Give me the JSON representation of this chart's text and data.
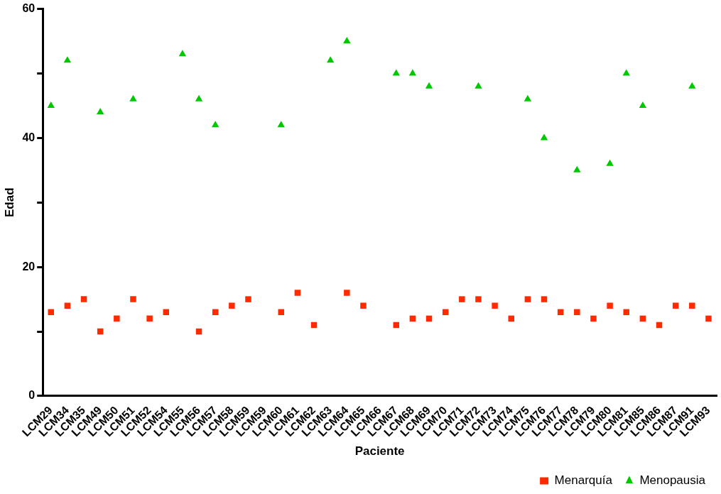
{
  "chart_data": {
    "type": "scatter",
    "xlabel": "Paciente",
    "ylabel": "Edad",
    "categories": [
      "LCM29",
      "LCM34",
      "LCM35",
      "LCM49",
      "LCM50",
      "LCM51",
      "LCM52",
      "LCM54",
      "LCM55",
      "LCM56",
      "LCM57",
      "LCM58",
      "LCM59",
      "LCM59",
      "LCM60",
      "LCM61",
      "LCM62",
      "LCM63",
      "LCM64",
      "LCM65",
      "LCM66",
      "LCM67",
      "LCM68",
      "LCM69",
      "LCM70",
      "LCM71",
      "LCM72",
      "LCM73",
      "LCM74",
      "LCM75",
      "LCM76",
      "LCM77",
      "LCM78",
      "LCM79",
      "LCM80",
      "LCM81",
      "LCM85",
      "LCM86",
      "LCM87",
      "LCM91",
      "LCM93"
    ],
    "series": [
      {
        "name": "Menarquía",
        "color": "#ff2a00",
        "marker": "square",
        "values": [
          13,
          14,
          15,
          10,
          12,
          15,
          12,
          13,
          null,
          10,
          13,
          14,
          15,
          null,
          13,
          16,
          11,
          null,
          16,
          14,
          null,
          11,
          12,
          12,
          13,
          15,
          15,
          14,
          12,
          15,
          15,
          13,
          13,
          12,
          14,
          13,
          12,
          11,
          14,
          14,
          12
        ]
      },
      {
        "name": "Menopausia",
        "color": "#00c800",
        "marker": "triangle",
        "values": [
          45,
          52,
          null,
          44,
          null,
          46,
          null,
          null,
          53,
          46,
          42,
          null,
          null,
          null,
          42,
          null,
          null,
          52,
          55,
          null,
          null,
          50,
          50,
          48,
          null,
          null,
          48,
          null,
          null,
          46,
          40,
          null,
          35,
          null,
          36,
          50,
          45,
          null,
          null,
          48,
          null
        ]
      }
    ],
    "ylim": [
      0,
      60
    ],
    "yticks": [
      0,
      {
        "value": 10,
        "label": null
      },
      20,
      {
        "value": 30,
        "label": null
      },
      40,
      {
        "value": 50,
        "label": null
      },
      60
    ],
    "grid": false,
    "legend": "bottom right"
  }
}
